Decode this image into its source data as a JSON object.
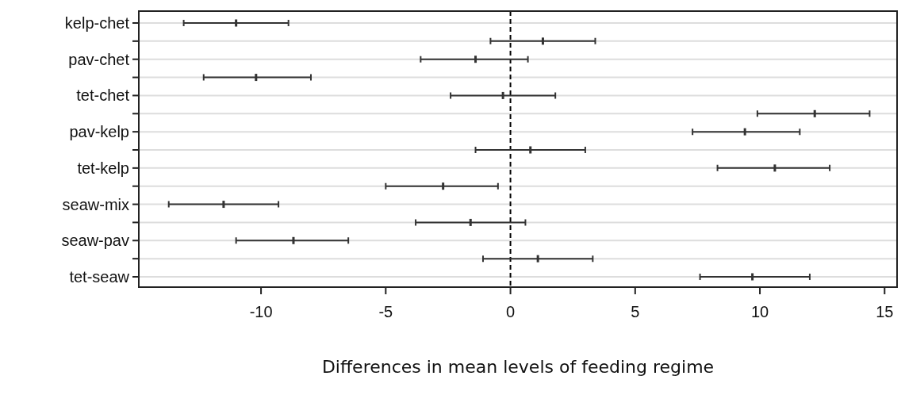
{
  "chart_data": {
    "type": "scatter",
    "orientation": "horizontal",
    "xlabel": "Differences in mean levels of feeding regime",
    "categories": [
      "kelp-chet",
      null,
      "pav-chet",
      null,
      "tet-chet",
      null,
      "pav-kelp",
      null,
      "tet-kelp",
      null,
      "seaw-mix",
      null,
      "seaw-pav",
      null,
      "tet-seaw"
    ],
    "values": [
      -11.0,
      1.3,
      -1.4,
      -10.2,
      -0.3,
      12.2,
      9.4,
      0.8,
      10.6,
      -2.7,
      -11.5,
      -1.6,
      -8.7,
      1.1,
      9.7
    ],
    "errors": [
      [
        -13.1,
        -8.9
      ],
      [
        -0.8,
        3.4
      ],
      [
        -3.6,
        0.7
      ],
      [
        -12.3,
        -8.0
      ],
      [
        -2.4,
        1.8
      ],
      [
        9.9,
        14.4
      ],
      [
        7.3,
        11.6
      ],
      [
        -1.4,
        3.0
      ],
      [
        8.3,
        12.8
      ],
      [
        -5.0,
        -0.5
      ],
      [
        -13.7,
        -9.3
      ],
      [
        -3.8,
        0.6
      ],
      [
        -11.0,
        -6.5
      ],
      [
        -1.1,
        3.3
      ],
      [
        7.6,
        12.0
      ]
    ],
    "color": "#333333",
    "xlim": [
      -14.9,
      15.5
    ],
    "xticks": [
      -10,
      -5,
      0,
      5,
      10,
      15
    ],
    "grid": "y",
    "ref_lines": [
      {
        "axis": "x",
        "value": 0,
        "line_style": "dashed",
        "color": "#000000"
      }
    ]
  }
}
